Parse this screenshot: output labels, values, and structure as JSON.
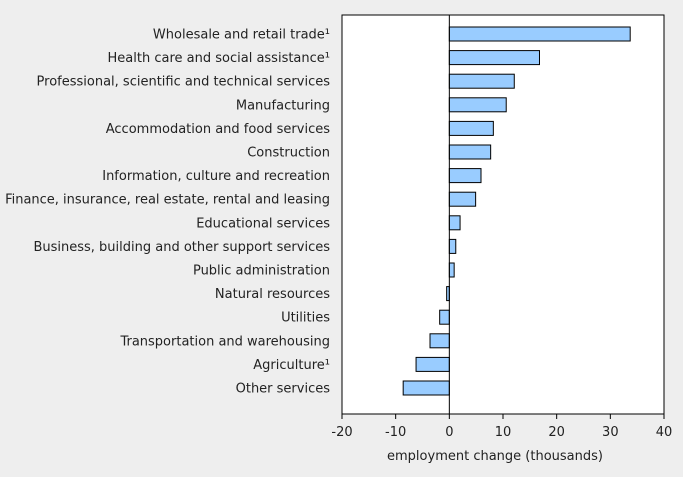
{
  "chart_data": {
    "type": "bar",
    "orientation": "horizontal",
    "title": "",
    "xlabel": "employment change (thousands)",
    "ylabel": "",
    "xlim": [
      -20,
      40
    ],
    "xticks": [
      -20,
      -10,
      0,
      10,
      20,
      30,
      40
    ],
    "grid": false,
    "bar_color": "#99ccff",
    "bar_edge_color": "#000000",
    "categories": [
      "Wholesale and retail trade¹",
      "Health care and social assistance¹",
      "Professional, scientific and technical services",
      "Manufacturing",
      "Accommodation and food services",
      "Construction",
      "Information, culture and recreation",
      "Finance, insurance, real estate, rental and leasing",
      "Educational services",
      "Business, building and other support services",
      "Public administration",
      "Natural resources",
      "Utilities",
      "Transportation and warehousing",
      "Agriculture¹",
      "Other services"
    ],
    "values": [
      33.7,
      16.8,
      12.1,
      10.6,
      8.2,
      7.7,
      5.9,
      4.9,
      2.0,
      1.2,
      0.9,
      -0.5,
      -1.8,
      -3.6,
      -6.2,
      -8.6
    ]
  }
}
